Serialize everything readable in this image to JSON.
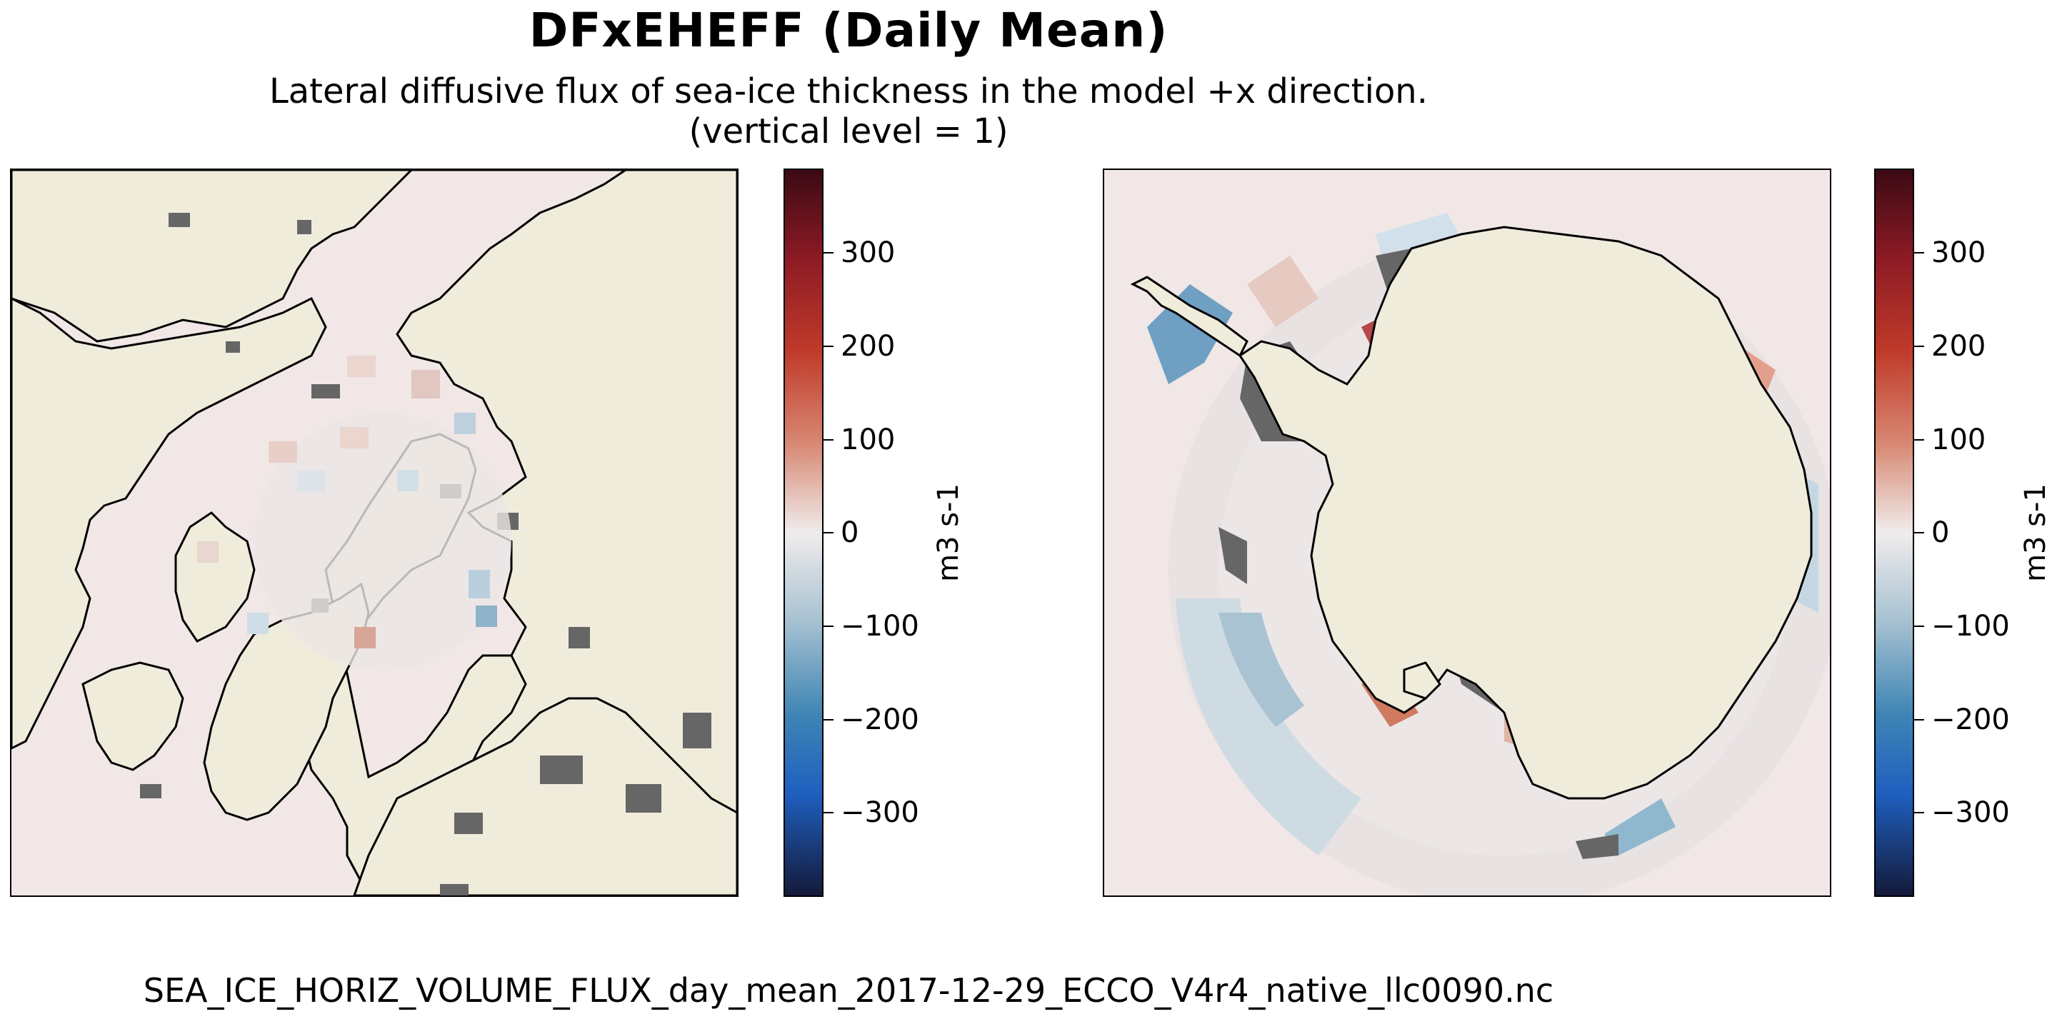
{
  "figure": {
    "title": "DFxEHEFF (Daily Mean)",
    "subtitle_line1": "Lateral diffusive flux of sea-ice thickness in the model +x direction.",
    "subtitle_line2": "(vertical level = 1)",
    "footer": "SEA_ICE_HORIZ_VOLUME_FLUX_day_mean_2017-12-29_ECCO_V4r4_native_llc0090.nc"
  },
  "maps": [
    {
      "name": "arctic",
      "projection": "north-polar-stereographic",
      "ocean_color": "#f1e7e6",
      "land_color": "#efecdc",
      "shelf_color": "#666666"
    },
    {
      "name": "antarctic",
      "projection": "south-polar-stereographic",
      "ocean_color": "#f1e7e6",
      "land_color": "#efecdc",
      "shelf_color": "#666666"
    }
  ],
  "colorbar": {
    "label": "m3 s-1",
    "range": [
      -390,
      390
    ],
    "ticks": [
      "300",
      "200",
      "100",
      "0",
      "−100",
      "−200",
      "−300"
    ],
    "tick_values": [
      300,
      200,
      100,
      0,
      -100,
      -200,
      -300
    ],
    "colormap": "balance",
    "colors": {
      "min": "#141a3a",
      "neg": "#1f5fbf",
      "mid": "#f0ecec",
      "pos": "#c03a2a",
      "max": "#3b0a14"
    }
  }
}
